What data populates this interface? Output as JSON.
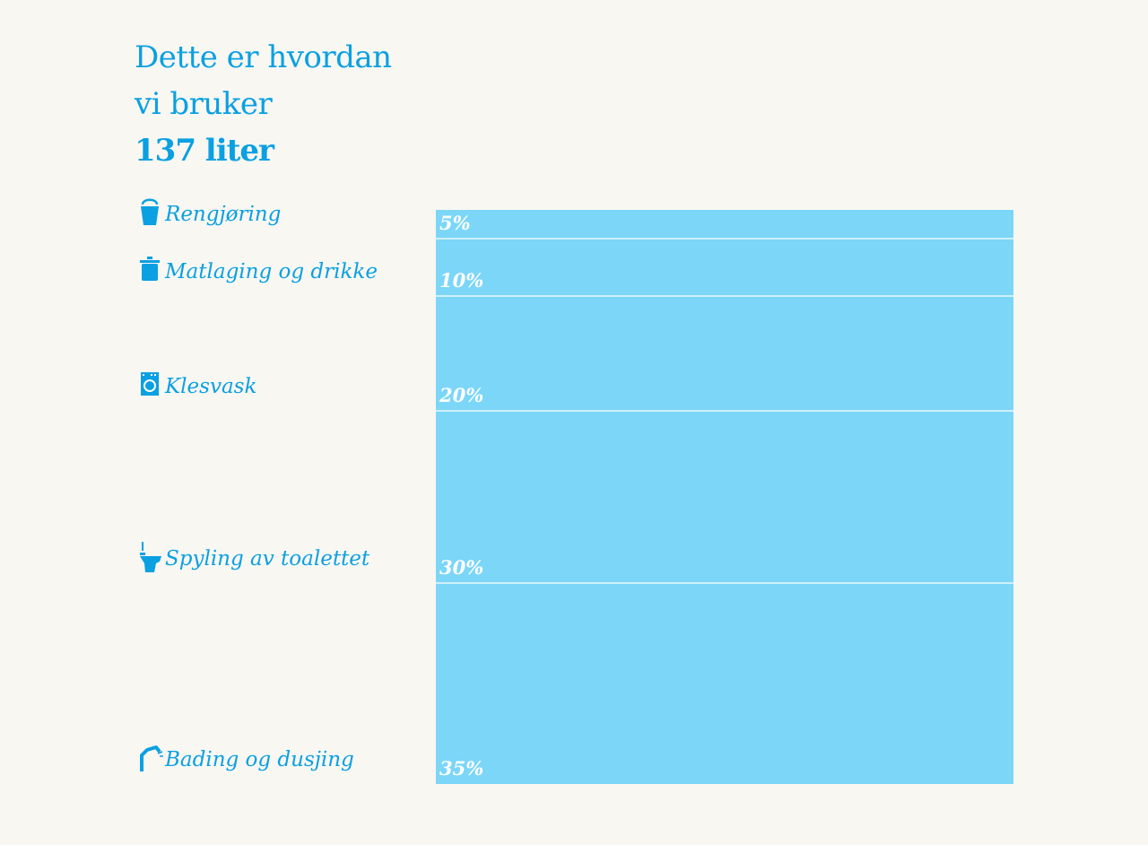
{
  "title": {
    "line1": "Dette er hvordan",
    "line2": "vi bruker",
    "line3": "137 liter"
  },
  "colors": {
    "bar": "#7bd6f8",
    "accent": "#0aa0e2",
    "separator": "#ffffff",
    "background": "#f8f7f2"
  },
  "chart_data": {
    "type": "bar",
    "orientation": "stacked-vertical",
    "title": "Dette er hvordan vi bruker 137 liter",
    "categories": [
      "Rengjøring",
      "Matlaging og drikke",
      "Klesvask",
      "Spyling av toalettet",
      "Bading og dusjing"
    ],
    "values": [
      5,
      10,
      20,
      30,
      35
    ],
    "value_labels": [
      "5%",
      "10%",
      "20%",
      "30%",
      "35%"
    ],
    "icons": [
      "bucket-icon",
      "pot-icon",
      "washing-machine-icon",
      "toilet-icon",
      "shower-icon"
    ],
    "unit": "%",
    "total": 100,
    "grid": false,
    "legend": "none"
  }
}
